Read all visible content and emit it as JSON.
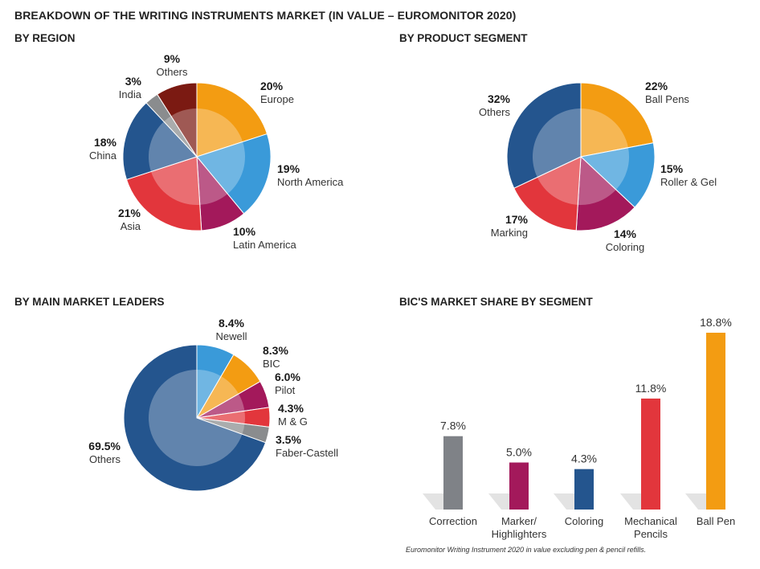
{
  "title": "BREAKDOWN OF THE WRITING INSTRUMENTS MARKET (IN VALUE – EUROMONITOR 2020)",
  "footnote": "Euromonitor Writing Instrument 2020 in value excluding pen & pencil refills.",
  "chart_data": [
    {
      "type": "pie",
      "title": "BY REGION",
      "slices": [
        {
          "label": "Europe",
          "value": 20,
          "display": "20%",
          "color": "#F39C12"
        },
        {
          "label": "North America",
          "value": 19,
          "display": "19%",
          "color": "#3A9AD9"
        },
        {
          "label": "Latin America",
          "value": 10,
          "display": "10%",
          "color": "#A3195B"
        },
        {
          "label": "Asia",
          "value": 21,
          "display": "21%",
          "color": "#E2363C"
        },
        {
          "label": "China",
          "value": 18,
          "display": "18%",
          "color": "#24558E"
        },
        {
          "label": "India",
          "value": 3,
          "display": "3%",
          "color": "#8A8C8E"
        },
        {
          "label": "Others",
          "value": 9,
          "display": "9%",
          "color": "#7B1A12"
        }
      ]
    },
    {
      "type": "pie",
      "title": "BY PRODUCT SEGMENT",
      "slices": [
        {
          "label": "Ball Pens",
          "value": 22,
          "display": "22%",
          "color": "#F39C12"
        },
        {
          "label": "Roller & Gel",
          "value": 15,
          "display": "15%",
          "color": "#3A9AD9"
        },
        {
          "label": "Coloring",
          "value": 14,
          "display": "14%",
          "color": "#A3195B"
        },
        {
          "label": "Marking",
          "value": 17,
          "display": "17%",
          "color": "#E2363C"
        },
        {
          "label": "Others",
          "value": 32,
          "display": "32%",
          "color": "#24558E"
        }
      ]
    },
    {
      "type": "pie",
      "title": "BY MAIN MARKET LEADERS",
      "slices": [
        {
          "label": "Newell",
          "value": 8.4,
          "display": "8.4%",
          "color": "#3A9AD9"
        },
        {
          "label": "BIC",
          "value": 8.3,
          "display": "8.3%",
          "color": "#F39C12"
        },
        {
          "label": "Pilot",
          "value": 6.0,
          "display": "6.0%",
          "color": "#A3195B"
        },
        {
          "label": "M & G",
          "value": 4.3,
          "display": "4.3%",
          "color": "#E2363C"
        },
        {
          "label": "Faber-Castell",
          "value": 3.5,
          "display": "3.5%",
          "color": "#8A8C8E"
        },
        {
          "label": "Others",
          "value": 69.5,
          "display": "69.5%",
          "color": "#24558E"
        }
      ]
    },
    {
      "type": "bar",
      "title": "BIC'S MARKET SHARE BY SEGMENT",
      "categories": [
        "Correction",
        "Marker/\nHighlighters",
        "Coloring",
        "Mechanical\nPencils",
        "Ball Pen"
      ],
      "values": [
        7.8,
        5.0,
        4.3,
        11.8,
        18.8
      ],
      "display": [
        "7.8%",
        "5.0%",
        "4.3%",
        "11.8%",
        "18.8%"
      ],
      "colors": [
        "#7F8287",
        "#A3195B",
        "#24558E",
        "#E2363C",
        "#F39C12"
      ]
    }
  ]
}
